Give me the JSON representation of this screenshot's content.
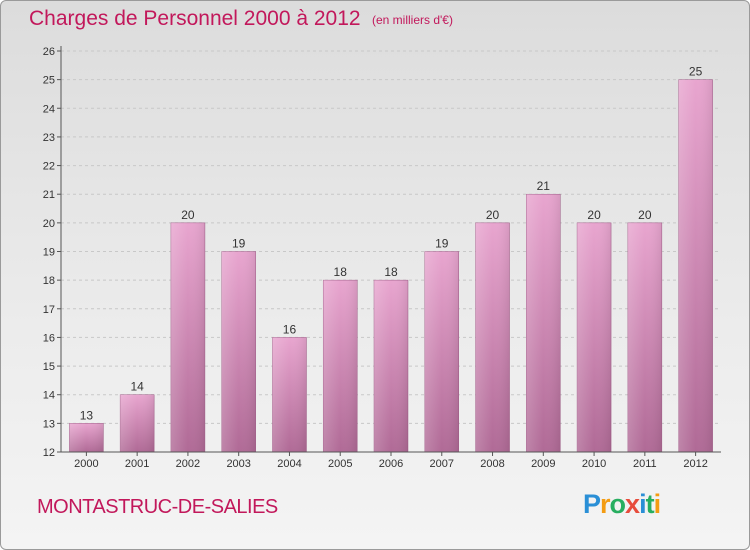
{
  "header": {
    "title": "Charges de Personnel 2000 à 2012",
    "subtitle": "(en milliers d'€)"
  },
  "footer": {
    "place": "MONTASTRUC-DE-SALIES",
    "logo_letters": [
      "P",
      "r",
      "o",
      "x",
      "i",
      "t",
      "i"
    ],
    "logo_colors": [
      "#2a8fd6",
      "#f39c12",
      "#27ae60",
      "#e74c3c",
      "#2a8fd6",
      "#27ae60",
      "#f39c12"
    ]
  },
  "colors": {
    "accent": "#c2185b",
    "bar_top": "#e8a5cf",
    "bar_bottom": "#b06a96",
    "grid": "#c8c8c8",
    "axis": "#555555"
  },
  "chart_data": {
    "type": "bar",
    "title": "Charges de Personnel 2000 à 2012",
    "subtitle": "(en milliers d'€)",
    "categories": [
      "2000",
      "2001",
      "2002",
      "2003",
      "2004",
      "2005",
      "2006",
      "2007",
      "2008",
      "2009",
      "2010",
      "2011",
      "2012"
    ],
    "values": [
      13,
      14,
      20,
      19,
      16,
      18,
      18,
      19,
      20,
      21,
      20,
      20,
      25
    ],
    "data_labels": [
      "13",
      "14",
      "20",
      "19",
      "16",
      "18",
      "18",
      "19",
      "20",
      "21",
      "20",
      "20",
      "25"
    ],
    "ylim": [
      12,
      26
    ],
    "yticks": [
      12,
      13,
      14,
      15,
      16,
      17,
      18,
      19,
      20,
      21,
      22,
      23,
      24,
      25,
      26
    ],
    "grid": true,
    "xlabel": "",
    "ylabel": ""
  }
}
